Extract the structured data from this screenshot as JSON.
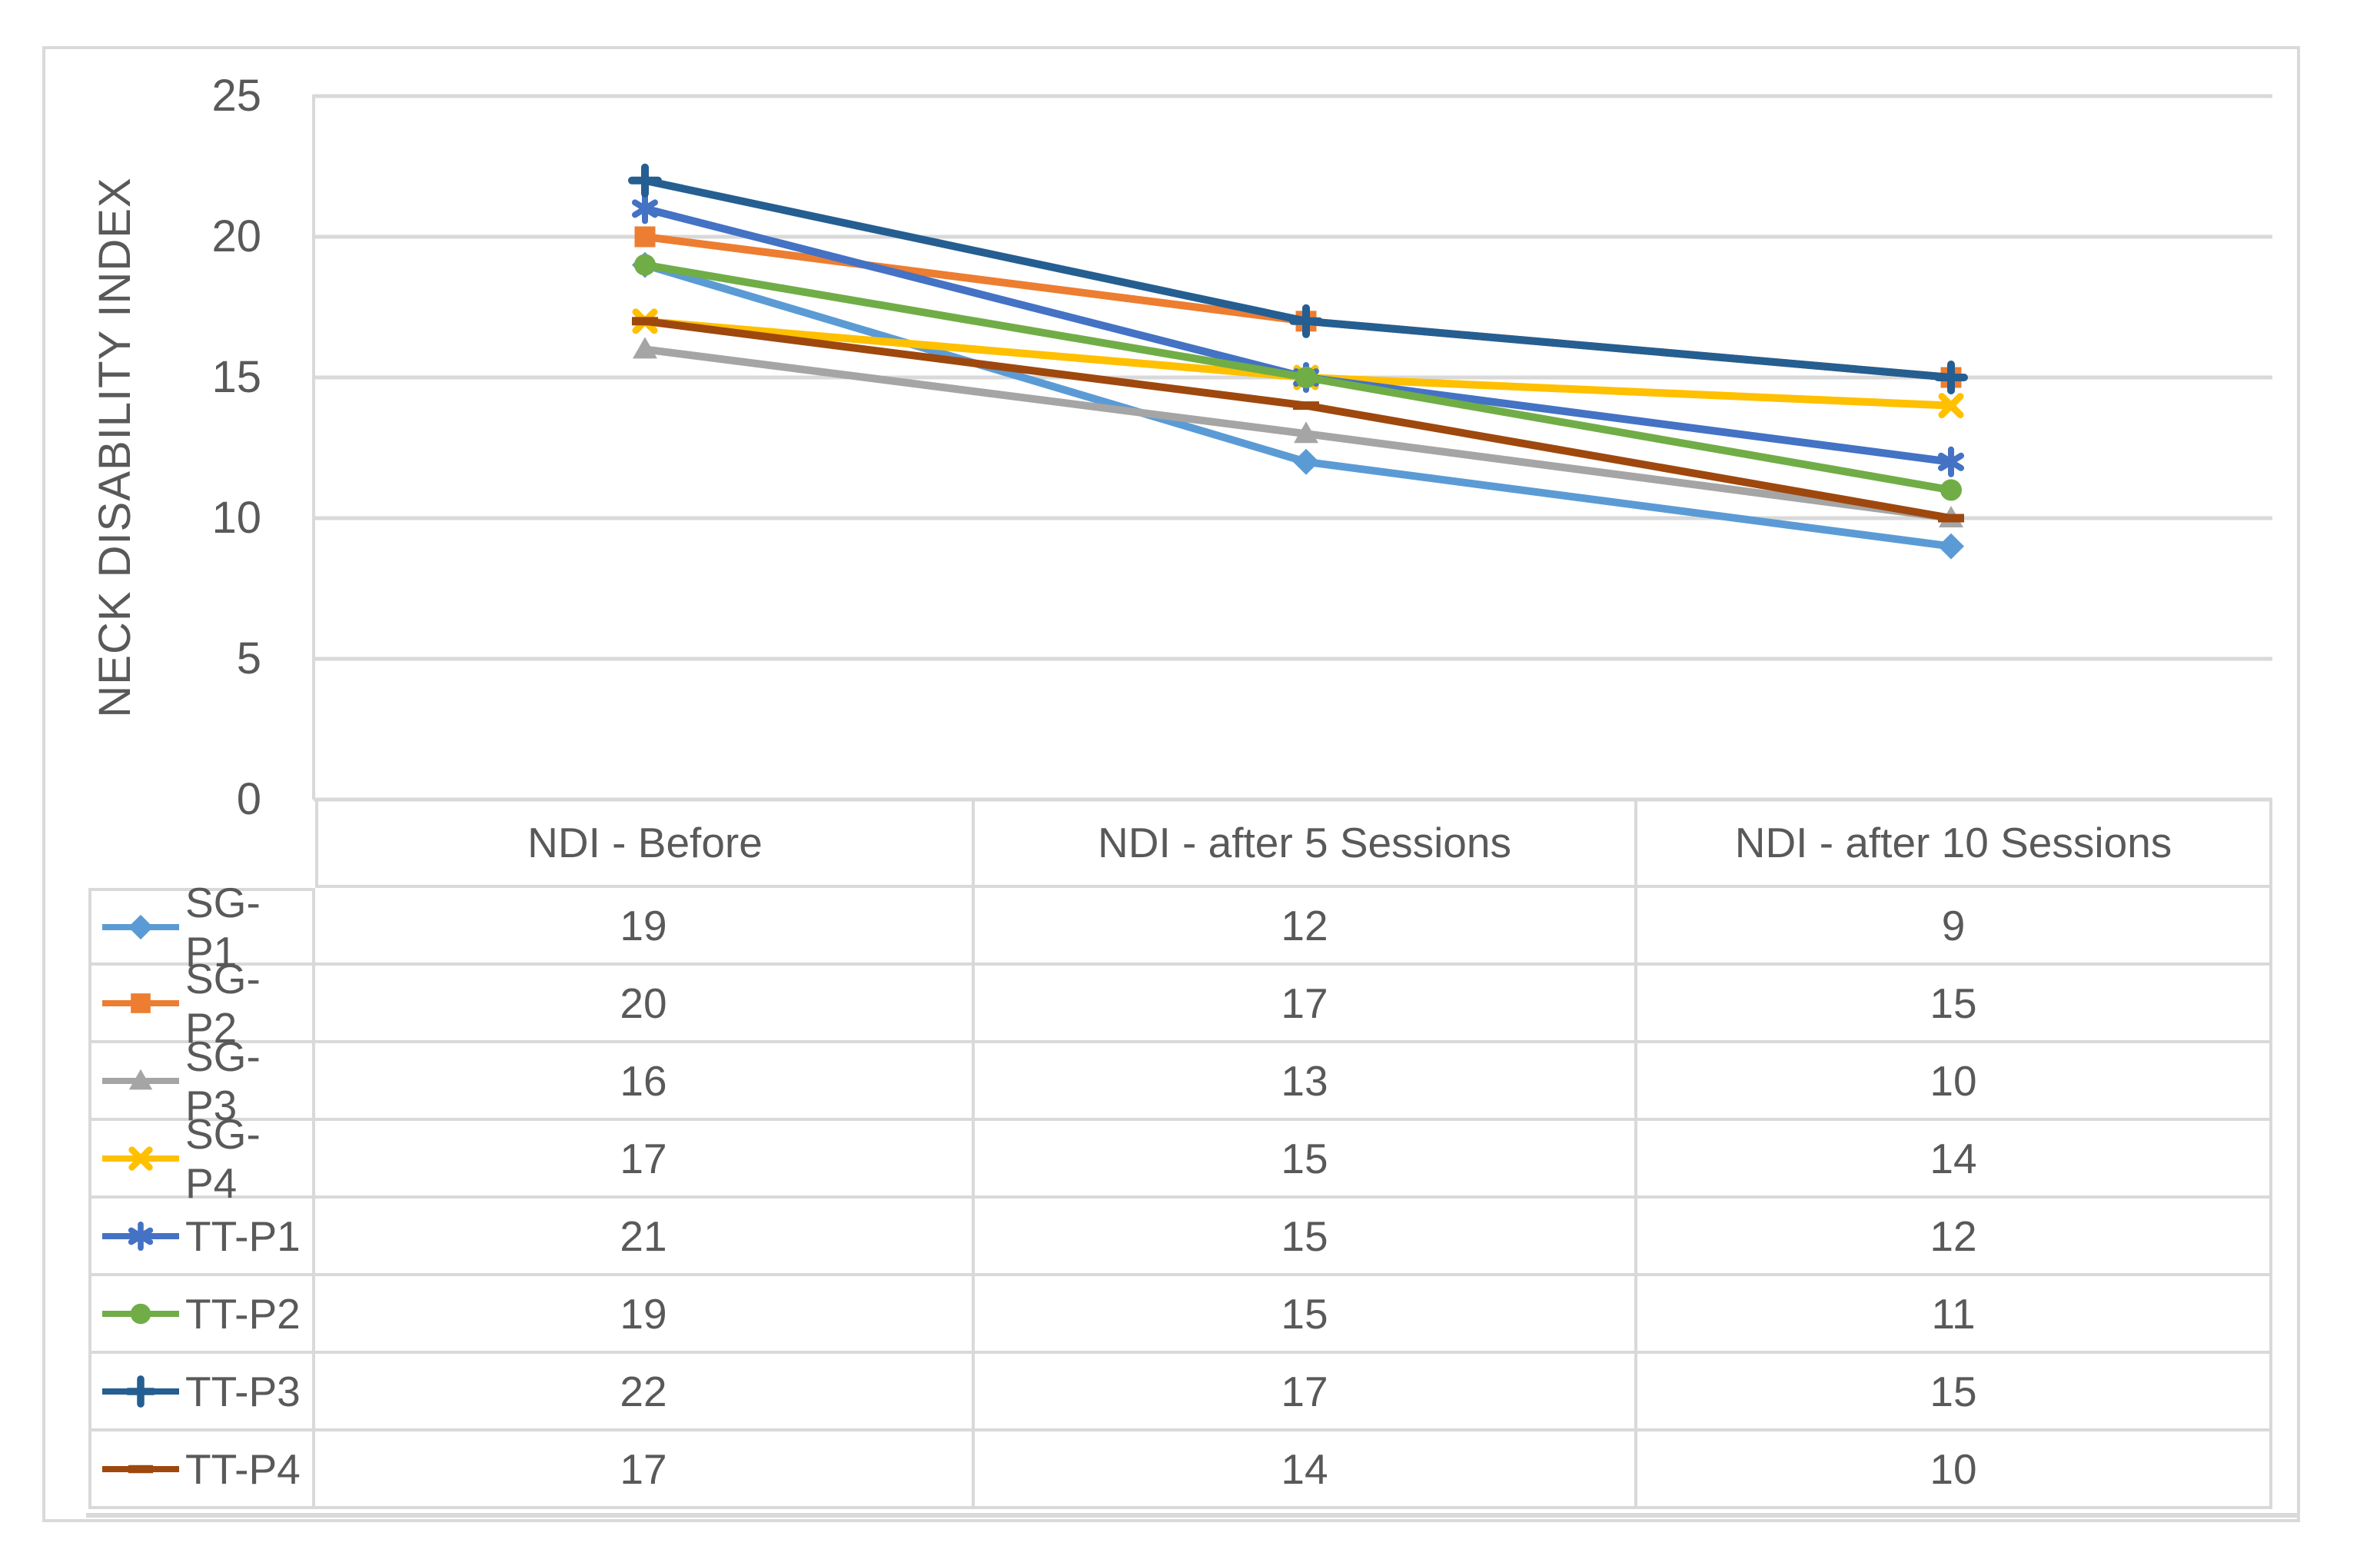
{
  "chart_data": {
    "type": "line",
    "title": "",
    "y_axis": {
      "label": "NECK DISABILITY INDEX",
      "min": 0,
      "max": 25,
      "tick_step": 5,
      "ticks": [
        0,
        5,
        10,
        15,
        20,
        25
      ]
    },
    "x_axis": {
      "categories": [
        "NDI - Before",
        "NDI - after 5 Sessions",
        "NDI - after 10 Sessions"
      ]
    },
    "grid": true,
    "legend_position": "data-table-left",
    "series": [
      {
        "name": "SG-P1",
        "values": [
          19,
          12,
          9
        ],
        "color": "#5B9BD5",
        "marker": "diamond"
      },
      {
        "name": "SG-P2",
        "values": [
          20,
          17,
          15
        ],
        "color": "#ED7D31",
        "marker": "square"
      },
      {
        "name": "SG-P3",
        "values": [
          16,
          13,
          10
        ],
        "color": "#A5A5A5",
        "marker": "triangle"
      },
      {
        "name": "SG-P4",
        "values": [
          17,
          15,
          14
        ],
        "color": "#FFC000",
        "marker": "x"
      },
      {
        "name": "TT-P1",
        "values": [
          21,
          15,
          12
        ],
        "color": "#4472C4",
        "marker": "asterisk"
      },
      {
        "name": "TT-P2",
        "values": [
          19,
          15,
          11
        ],
        "color": "#70AD47",
        "marker": "circle"
      },
      {
        "name": "TT-P3",
        "values": [
          22,
          17,
          15
        ],
        "color": "#255E91",
        "marker": "plus"
      },
      {
        "name": "TT-P4",
        "values": [
          17,
          14,
          10
        ],
        "color": "#9E480E",
        "marker": "dash"
      }
    ],
    "colors": {
      "text": "#595959",
      "gridline": "#D9D9D9",
      "border": "#D9D9D9",
      "background": "#FFFFFF"
    }
  }
}
